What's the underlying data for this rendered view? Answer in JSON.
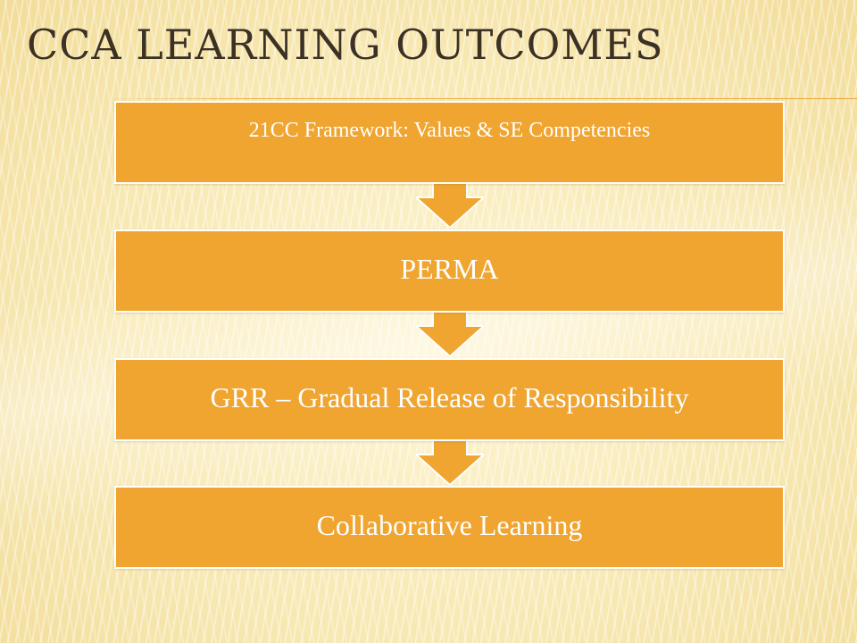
{
  "slide": {
    "title": "CCA LEARNING OUTCOMES"
  },
  "flow": {
    "steps": [
      {
        "label": "21CC Framework:  Values & SE Competencies"
      },
      {
        "label": "PERMA"
      },
      {
        "label": "GRR – Gradual Release of Responsibility"
      },
      {
        "label": "Collaborative Learning"
      }
    ]
  },
  "colors": {
    "box_fill": "#efa530",
    "box_border": "#ffffff",
    "box_text": "#ffffff",
    "title_text": "#3b3124",
    "arrow_fill": "#efa530",
    "accent_rule": "#e8a83c"
  }
}
